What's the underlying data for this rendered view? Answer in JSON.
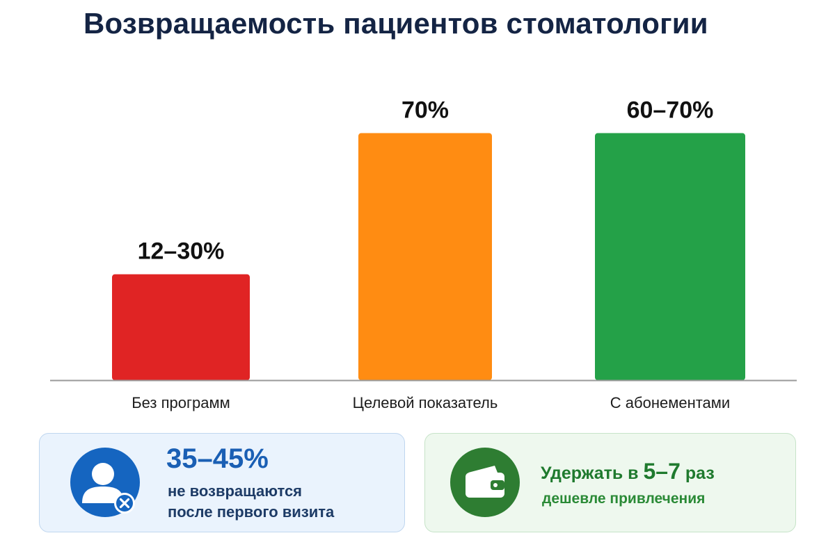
{
  "title": "Возвращаемость пациентов стоматологии",
  "chart_data": {
    "type": "bar",
    "categories": [
      "Без программ",
      "Целевой показатель",
      "С абонементами"
    ],
    "values": [
      30,
      70,
      70
    ],
    "ranges": [
      [
        12,
        30
      ],
      null,
      [
        60,
        70
      ]
    ],
    "value_labels": [
      "12–30%",
      "70%",
      "60–70%"
    ],
    "colors": [
      "#e02424",
      "#ff8c12",
      "#24a148"
    ],
    "ylim": [
      0,
      90
    ],
    "grid": false
  },
  "cards": {
    "left": {
      "icon": "user-remove-icon",
      "value": "35–45%",
      "line1": "не возвращаются",
      "line2": "после первого визита",
      "color": "#1565c0"
    },
    "right": {
      "icon": "wallet-icon",
      "prefix": "Удержать в ",
      "emphasis": "5–7",
      "suffix": " раз",
      "line": "дешевле привлечения",
      "color": "#2e7d32"
    }
  }
}
